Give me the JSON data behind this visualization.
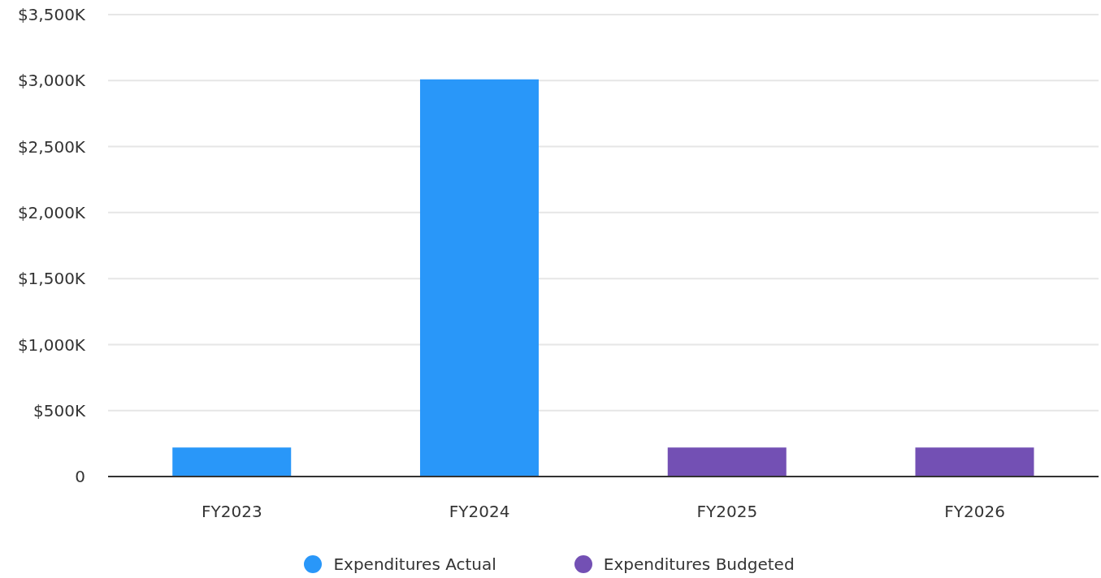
{
  "chart_data": {
    "type": "bar",
    "categories": [
      "FY2023",
      "FY2024",
      "FY2025",
      "FY2026"
    ],
    "series": [
      {
        "name": "Expenditures Actual",
        "color": "#2997f9",
        "values": [
          220,
          3010,
          null,
          null
        ]
      },
      {
        "name": "Expenditures Budgeted",
        "color": "#7350b4",
        "values": [
          null,
          null,
          220,
          220
        ]
      }
    ],
    "ylim": [
      0,
      3500
    ],
    "yticks": [
      0,
      {
        "value": 500,
        "label": "$500K"
      },
      {
        "value": 1000,
        "label": "$1,000K"
      },
      {
        "value": 1500,
        "label": "$1,500K"
      },
      {
        "value": 2000,
        "label": "$2,000K"
      },
      {
        "value": 2500,
        "label": "$2,500K"
      },
      {
        "value": 3000,
        "label": "$3,000K"
      },
      {
        "value": 3500,
        "label": "$3,500K"
      }
    ],
    "grid": "y",
    "legend": "bottom"
  }
}
